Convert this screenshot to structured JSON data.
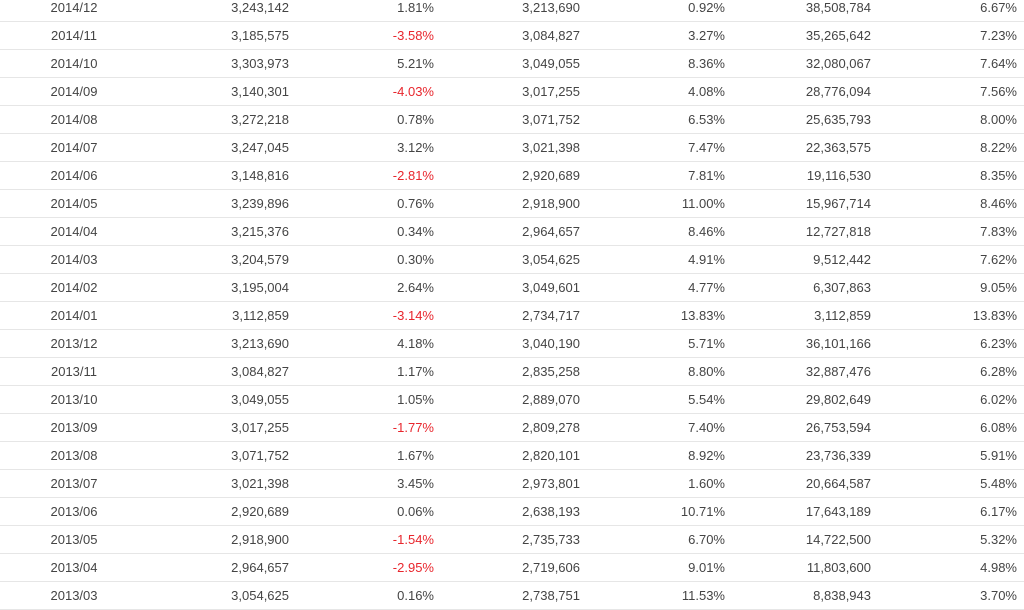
{
  "colors": {
    "negative": "#e8262d",
    "text": "#444444",
    "divider": "#e6e6e6"
  },
  "rows": [
    [
      "2014/12",
      "3,243,142",
      "1.81%",
      "3,213,690",
      "0.92%",
      "38,508,784",
      "6.67%"
    ],
    [
      "2014/11",
      "3,185,575",
      "-3.58%",
      "3,084,827",
      "3.27%",
      "35,265,642",
      "7.23%"
    ],
    [
      "2014/10",
      "3,303,973",
      "5.21%",
      "3,049,055",
      "8.36%",
      "32,080,067",
      "7.64%"
    ],
    [
      "2014/09",
      "3,140,301",
      "-4.03%",
      "3,017,255",
      "4.08%",
      "28,776,094",
      "7.56%"
    ],
    [
      "2014/08",
      "3,272,218",
      "0.78%",
      "3,071,752",
      "6.53%",
      "25,635,793",
      "8.00%"
    ],
    [
      "2014/07",
      "3,247,045",
      "3.12%",
      "3,021,398",
      "7.47%",
      "22,363,575",
      "8.22%"
    ],
    [
      "2014/06",
      "3,148,816",
      "-2.81%",
      "2,920,689",
      "7.81%",
      "19,116,530",
      "8.35%"
    ],
    [
      "2014/05",
      "3,239,896",
      "0.76%",
      "2,918,900",
      "11.00%",
      "15,967,714",
      "8.46%"
    ],
    [
      "2014/04",
      "3,215,376",
      "0.34%",
      "2,964,657",
      "8.46%",
      "12,727,818",
      "7.83%"
    ],
    [
      "2014/03",
      "3,204,579",
      "0.30%",
      "3,054,625",
      "4.91%",
      "9,512,442",
      "7.62%"
    ],
    [
      "2014/02",
      "3,195,004",
      "2.64%",
      "3,049,601",
      "4.77%",
      "6,307,863",
      "9.05%"
    ],
    [
      "2014/01",
      "3,112,859",
      "-3.14%",
      "2,734,717",
      "13.83%",
      "3,112,859",
      "13.83%"
    ],
    [
      "2013/12",
      "3,213,690",
      "4.18%",
      "3,040,190",
      "5.71%",
      "36,101,166",
      "6.23%"
    ],
    [
      "2013/11",
      "3,084,827",
      "1.17%",
      "2,835,258",
      "8.80%",
      "32,887,476",
      "6.28%"
    ],
    [
      "2013/10",
      "3,049,055",
      "1.05%",
      "2,889,070",
      "5.54%",
      "29,802,649",
      "6.02%"
    ],
    [
      "2013/09",
      "3,017,255",
      "-1.77%",
      "2,809,278",
      "7.40%",
      "26,753,594",
      "6.08%"
    ],
    [
      "2013/08",
      "3,071,752",
      "1.67%",
      "2,820,101",
      "8.92%",
      "23,736,339",
      "5.91%"
    ],
    [
      "2013/07",
      "3,021,398",
      "3.45%",
      "2,973,801",
      "1.60%",
      "20,664,587",
      "5.48%"
    ],
    [
      "2013/06",
      "2,920,689",
      "0.06%",
      "2,638,193",
      "10.71%",
      "17,643,189",
      "6.17%"
    ],
    [
      "2013/05",
      "2,918,900",
      "-1.54%",
      "2,735,733",
      "6.70%",
      "14,722,500",
      "5.32%"
    ],
    [
      "2013/04",
      "2,964,657",
      "-2.95%",
      "2,719,606",
      "9.01%",
      "11,803,600",
      "4.98%"
    ],
    [
      "2013/03",
      "3,054,625",
      "0.16%",
      "2,738,751",
      "11.53%",
      "8,838,943",
      "3.70%"
    ]
  ]
}
